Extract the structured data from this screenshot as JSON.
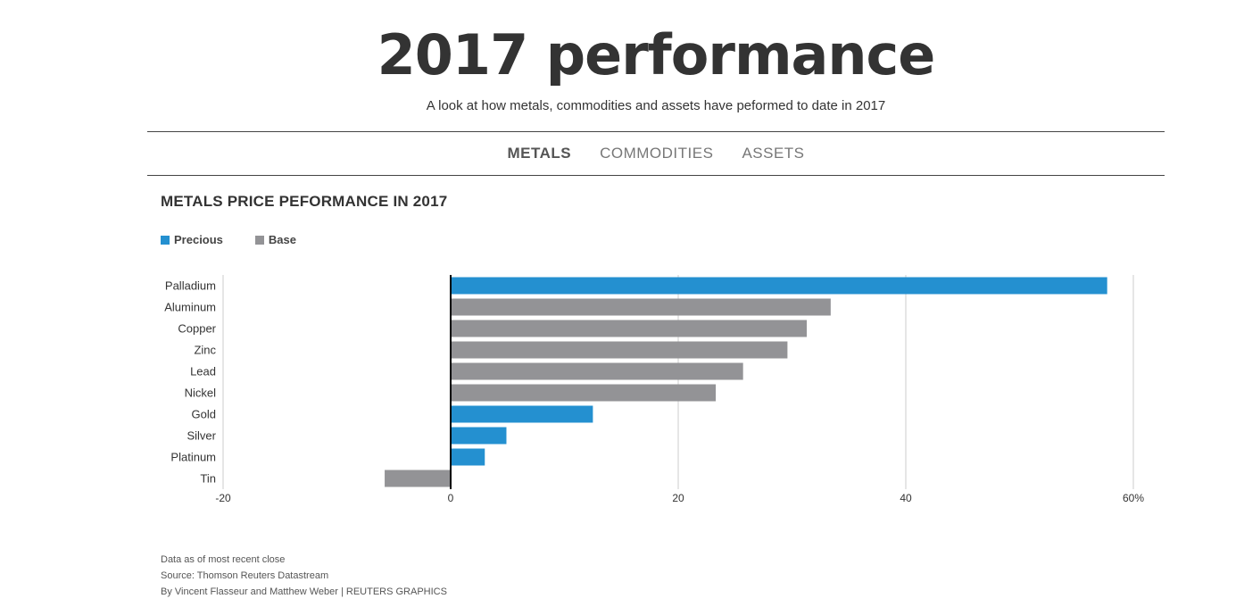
{
  "header": {
    "title": "2017 performance",
    "subtitle": "A look at how metals, commodities and assets have peformed to date in 2017"
  },
  "nav": {
    "tabs": [
      {
        "label": "METALS",
        "active": true
      },
      {
        "label": "COMMODITIES",
        "active": false
      },
      {
        "label": "ASSETS",
        "active": false
      }
    ]
  },
  "colors": {
    "precious": "#2490d0",
    "base": "#939396",
    "grid": "#cccccc",
    "zero_line": "#000000"
  },
  "legend": {
    "precious": "Precious",
    "base": "Base"
  },
  "chart_data": {
    "type": "bar",
    "orientation": "horizontal",
    "title": "METALS PRICE PEFORMANCE IN 2017",
    "categories": [
      "Palladium",
      "Aluminum",
      "Copper",
      "Zinc",
      "Lead",
      "Nickel",
      "Gold",
      "Silver",
      "Platinum",
      "Tin"
    ],
    "values": [
      57.7,
      33.4,
      31.3,
      29.6,
      25.7,
      23.3,
      12.5,
      4.9,
      3.0,
      -5.8
    ],
    "groups": [
      "Precious",
      "Base",
      "Base",
      "Base",
      "Base",
      "Base",
      "Precious",
      "Precious",
      "Precious",
      "Base"
    ],
    "xlim": [
      -20,
      60
    ],
    "xticks": [
      -20,
      0,
      20,
      40,
      60
    ],
    "xtick_labels": [
      "-20",
      "0",
      "20",
      "40",
      "60%"
    ],
    "grid": true,
    "legend_position": "top-left"
  },
  "notes": {
    "data_note": "Data as of most recent close",
    "source": "Source: Thomson Reuters Datastream",
    "credit": "By Vincent Flasseur and Matthew Weber | REUTERS GRAPHICS"
  }
}
